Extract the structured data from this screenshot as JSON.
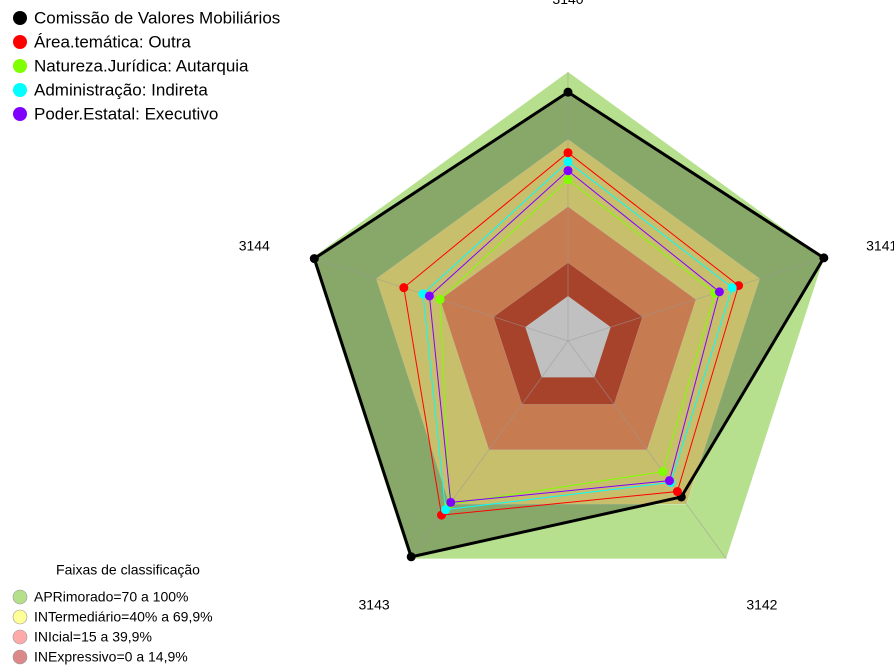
{
  "chart_data": {
    "type": "radar",
    "categories": [
      "3140",
      "3141",
      "3142",
      "3143",
      "3144"
    ],
    "ylim": [
      -20,
      100
    ],
    "center_color": "#c0c0c0",
    "series": [
      {
        "name": "Comissão de Valores Mobiliários",
        "color": "#000000",
        "values": [
          91,
          100,
          66,
          99,
          99
        ]
      },
      {
        "name": "Área.temática: Outra",
        "color": "#ff0000",
        "values": [
          64,
          60,
          63,
          76,
          57
        ]
      },
      {
        "name": "Natureza.Jurídica: Autarquia",
        "color": "#80ff00",
        "values": [
          52,
          49,
          52,
          70,
          40
        ]
      },
      {
        "name": "Administração: Indireta",
        "color": "#00ffff",
        "values": [
          60,
          57,
          58,
          73,
          48
        ]
      },
      {
        "name": "Poder.Estatal: Executivo",
        "color": "#8000ff",
        "values": [
          56,
          51,
          57,
          69,
          45
        ]
      }
    ],
    "bands_title": "Faixas de classificação",
    "bands": [
      {
        "label": "APRimorado=70 a 100%",
        "color": "#b5df8a",
        "fill": "#b6e08e",
        "min": 70,
        "max": 100
      },
      {
        "label": "INTermediário=40% a 69,9%",
        "color": "#ffff99",
        "fill": "#c8bf6c",
        "min": 40,
        "max": 69.9
      },
      {
        "label": "INIcial=15 a 39,9%",
        "color": "#ffaaaa",
        "fill": "#c67b50",
        "min": 15,
        "max": 39.9
      },
      {
        "label": "INExpressivo=0 a 14,9%",
        "color": "#dd8888",
        "fill": "#a8432b",
        "min": 0,
        "max": 14.9
      }
    ]
  }
}
